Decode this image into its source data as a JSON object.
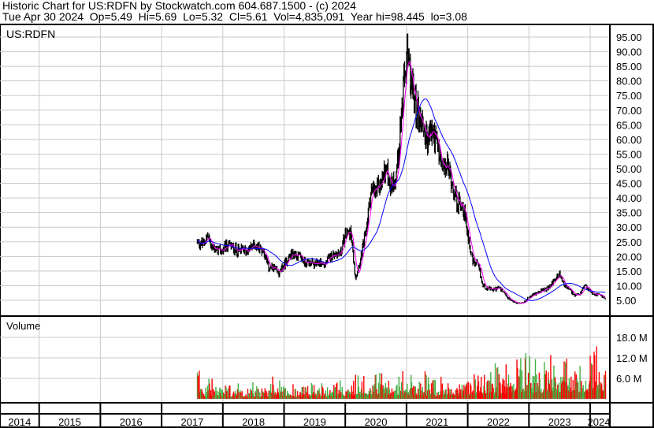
{
  "header": {
    "title": "Historic Chart for US:RDFN by Stockwatch.com 604.687.1500 - (c) 2024",
    "quote": "Tue Apr 30 2024  Op=5.49  Hi=5.69  Lo=5.32  Cl=5.61  Vol=4,835,091  Year hi=98.445  lo=3.08"
  },
  "chart_data": [
    {
      "type": "line",
      "title": "US:RDFN",
      "ylim": [
        0,
        100
      ],
      "y_ticks": [
        "5.00",
        "10.00",
        "15.00",
        "20.00",
        "25.00",
        "30.00",
        "35.00",
        "40.00",
        "45.00",
        "50.00",
        "55.00",
        "60.00",
        "65.00",
        "70.00",
        "75.00",
        "80.00",
        "85.00",
        "90.00",
        "95.00"
      ],
      "x_ticks": [
        "2014",
        "2015",
        "2016",
        "2017",
        "2018",
        "2019",
        "2020",
        "2021",
        "2022",
        "2023",
        "2024"
      ],
      "grid": true,
      "colors": {
        "price": "#000000",
        "short_ma": "#ff00ff",
        "long_ma": "#0000ff"
      },
      "monthly_close": {
        "start": "2017-08",
        "values": [
          25,
          24,
          27,
          23,
          22,
          22,
          24,
          23,
          22,
          22,
          22,
          24,
          23,
          22,
          16,
          16,
          14,
          17,
          20,
          21,
          20,
          18,
          18,
          17,
          18,
          17,
          20,
          21,
          21,
          27,
          29,
          13,
          19,
          28,
          42,
          42,
          45,
          50,
          44,
          48,
          68,
          88,
          78,
          70,
          66,
          60,
          63,
          58,
          49,
          51,
          45,
          38,
          38,
          28,
          18,
          17,
          10,
          9,
          8.5,
          9.5,
          7.5,
          5.5,
          4.5,
          4,
          4.2,
          6,
          7,
          8,
          8.5,
          9.5,
          12,
          14,
          10,
          8.5,
          6.5,
          7,
          10,
          8,
          7,
          6.7,
          5.6
        ]
      },
      "year_high": 98.445,
      "year_low": 3.08
    },
    {
      "type": "bar",
      "title": "Volume",
      "y_ticks": [
        "6.0 M",
        "12.0 M",
        "18.0 M"
      ],
      "colors": {
        "up": "#44b044",
        "down": "#ff0000"
      },
      "monthly_avg_volume_millions": [
        3,
        2,
        2,
        2,
        1.5,
        1.5,
        1.5,
        1.5,
        1.5,
        1.5,
        1.5,
        1.5,
        1.5,
        1.5,
        2,
        2,
        2,
        2,
        1.8,
        1.6,
        1.6,
        1.6,
        1.6,
        1.6,
        1.6,
        1.6,
        1.8,
        1.8,
        1.8,
        2,
        2,
        3,
        2.5,
        2.5,
        3,
        3,
        2.5,
        2.5,
        2.5,
        2.5,
        3,
        3,
        2.5,
        2.5,
        2.5,
        2,
        2,
        2,
        2,
        2,
        2,
        2,
        2,
        2.5,
        3,
        3,
        3,
        3,
        3,
        3,
        3,
        3,
        4,
        4,
        4,
        4,
        4,
        4,
        4,
        4,
        4,
        5,
        4,
        4,
        4,
        4,
        5,
        5,
        5,
        5,
        4.8
      ]
    }
  ]
}
